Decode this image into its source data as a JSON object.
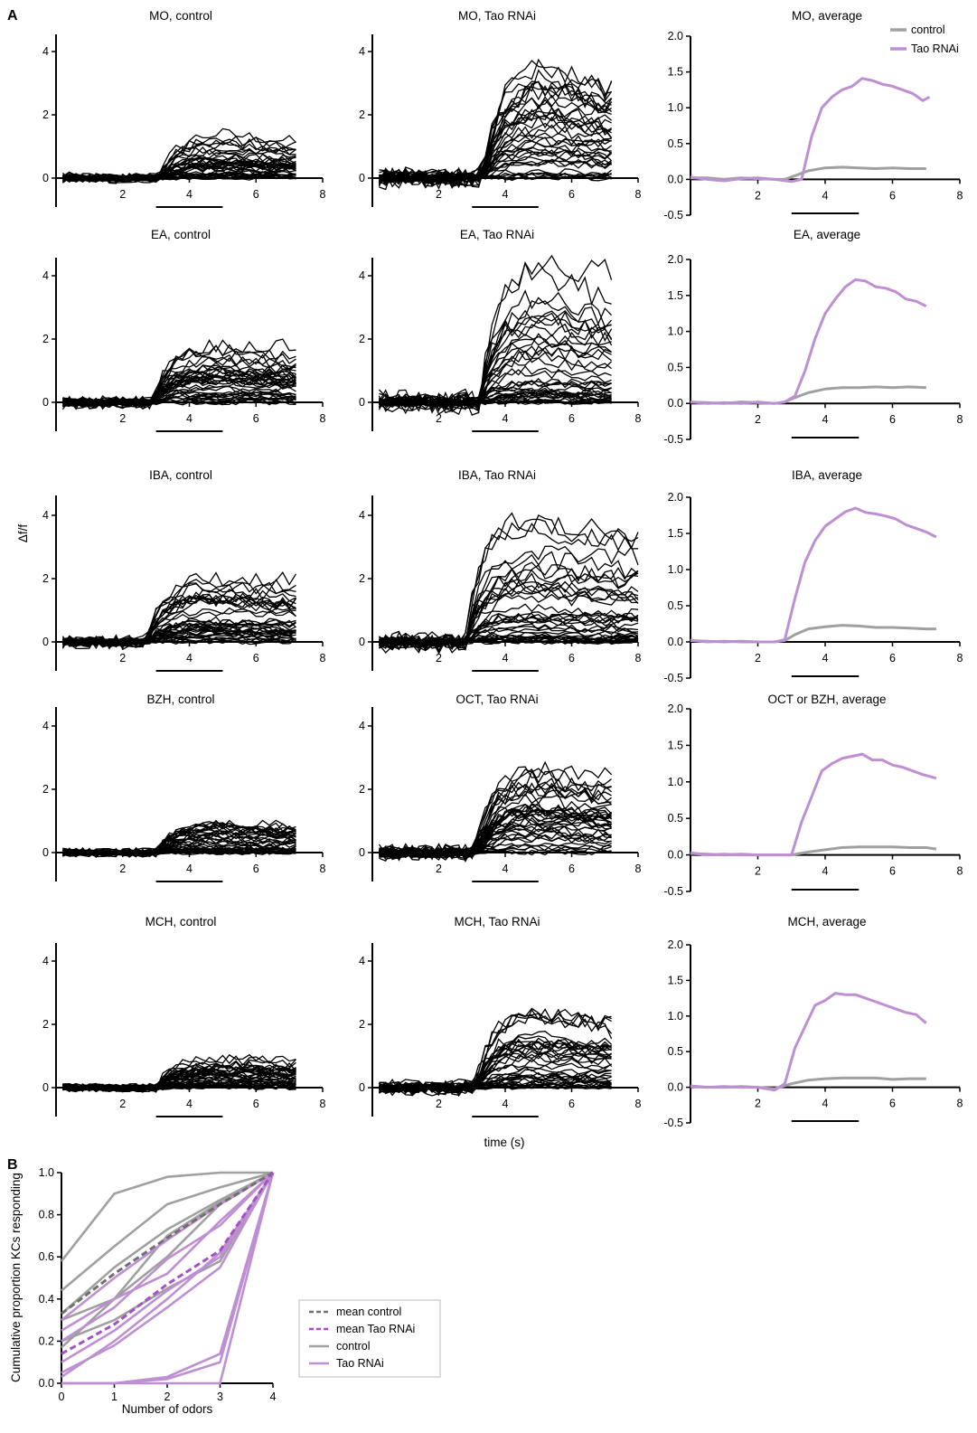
{
  "figure": {
    "panel_a_label": "A",
    "panel_b_label": "B",
    "shared_ylabel": "Δf/f",
    "shared_xlabel": "time (s)"
  },
  "colors": {
    "control": "#a0a0a0",
    "tao": "#be8fd2",
    "trace": "#000000",
    "mean_tao": "#a650c4",
    "mean_control": "#707070"
  },
  "chart_data": [
    {
      "type": "line",
      "title": "MO, control",
      "kind": "traces",
      "xlim": [
        0,
        8
      ],
      "ylim": [
        -0.8,
        4.6
      ],
      "yticks": [
        0,
        2,
        4
      ],
      "xticks": [
        2,
        4,
        6,
        8
      ],
      "n_traces": 40,
      "onset_s": 3.1,
      "peak_s": 5.0,
      "max_response": 1.4,
      "baseline_noise": 0.08,
      "bar_s": [
        3,
        5
      ],
      "t_end": 7.2
    },
    {
      "type": "line",
      "title": "MO, Tao RNAi",
      "kind": "traces",
      "xlim": [
        0,
        8
      ],
      "ylim": [
        -0.8,
        4.6
      ],
      "yticks": [
        0,
        2,
        4
      ],
      "xticks": [
        2,
        4,
        6,
        8
      ],
      "n_traces": 40,
      "onset_s": 3.3,
      "peak_s": 5.2,
      "max_response": 3.5,
      "baseline_noise": 0.08,
      "bar_s": [
        3,
        5
      ],
      "t_end": 7.2
    },
    {
      "type": "line",
      "title": "MO, average",
      "kind": "average",
      "xlim": [
        0,
        8
      ],
      "ylim": [
        -0.5,
        2.0
      ],
      "yticks": [
        -0.5,
        0.0,
        0.5,
        1.0,
        1.5,
        2.0
      ],
      "xticks": [
        2,
        4,
        6,
        8
      ],
      "bar_s": [
        3,
        5
      ],
      "legend": {
        "position": "top-right",
        "entries": [
          {
            "label": "control",
            "color": "#a0a0a0"
          },
          {
            "label": "Tao RNAi",
            "color": "#be8fd2"
          }
        ]
      },
      "series": [
        {
          "name": "control",
          "x": [
            0,
            0.5,
            1,
            1.5,
            2,
            2.5,
            2.8,
            3.1,
            3.5,
            4,
            4.5,
            5,
            5.5,
            6,
            6.5,
            7
          ],
          "y": [
            0.02,
            0.02,
            0.0,
            0.02,
            0.01,
            0.0,
            0.0,
            0.05,
            0.12,
            0.16,
            0.17,
            0.16,
            0.15,
            0.16,
            0.15,
            0.15
          ]
        },
        {
          "name": "Tao RNAi",
          "x": [
            0,
            0.5,
            1,
            1.5,
            2,
            2.5,
            3,
            3.3,
            3.6,
            3.9,
            4.2,
            4.5,
            4.8,
            5.1,
            5.4,
            5.7,
            6,
            6.3,
            6.6,
            6.9,
            7.1
          ],
          "y": [
            0.03,
            0.0,
            -0.02,
            0.01,
            0.02,
            0.0,
            -0.03,
            0.0,
            0.6,
            1.0,
            1.15,
            1.25,
            1.3,
            1.41,
            1.38,
            1.33,
            1.3,
            1.25,
            1.2,
            1.1,
            1.15
          ]
        }
      ]
    },
    {
      "type": "line",
      "title": "EA, control",
      "kind": "traces",
      "xlim": [
        0,
        8
      ],
      "ylim": [
        -0.8,
        4.6
      ],
      "yticks": [
        0,
        2,
        4
      ],
      "xticks": [
        2,
        4,
        6,
        8
      ],
      "n_traces": 40,
      "onset_s": 2.9,
      "peak_s": 4.8,
      "max_response": 1.8,
      "baseline_noise": 0.08,
      "bar_s": [
        3,
        5
      ],
      "t_end": 7.2
    },
    {
      "type": "line",
      "title": "EA, Tao RNAi",
      "kind": "traces",
      "xlim": [
        0,
        8
      ],
      "ylim": [
        -0.8,
        4.6
      ],
      "yticks": [
        0,
        2,
        4
      ],
      "xticks": [
        2,
        4,
        6,
        8
      ],
      "n_traces": 40,
      "onset_s": 3.2,
      "peak_s": 5.0,
      "max_response": 4.3,
      "baseline_noise": 0.08,
      "bar_s": [
        3,
        5
      ],
      "t_end": 7.2
    },
    {
      "type": "line",
      "title": "EA, average",
      "kind": "average",
      "xlim": [
        0,
        8
      ],
      "ylim": [
        -0.5,
        2.0
      ],
      "yticks": [
        -0.5,
        0.0,
        0.5,
        1.0,
        1.5,
        2.0
      ],
      "xticks": [
        2,
        4,
        6,
        8
      ],
      "bar_s": [
        3,
        5
      ],
      "series": [
        {
          "name": "control",
          "x": [
            0,
            0.5,
            1,
            1.5,
            2,
            2.5,
            2.8,
            3.1,
            3.5,
            4,
            4.5,
            5,
            5.5,
            6,
            6.5,
            7
          ],
          "y": [
            0.02,
            0.01,
            0.0,
            0.02,
            0.01,
            0.0,
            0.02,
            0.08,
            0.15,
            0.2,
            0.22,
            0.22,
            0.23,
            0.22,
            0.23,
            0.22
          ]
        },
        {
          "name": "Tao RNAi",
          "x": [
            0,
            0.5,
            1,
            1.5,
            2,
            2.5,
            2.8,
            3.1,
            3.4,
            3.7,
            4,
            4.3,
            4.6,
            4.9,
            5.2,
            5.5,
            5.8,
            6.1,
            6.4,
            6.7,
            7
          ],
          "y": [
            0.02,
            0.0,
            0.01,
            0.0,
            0.02,
            0.0,
            0.02,
            0.1,
            0.45,
            0.9,
            1.25,
            1.45,
            1.62,
            1.72,
            1.7,
            1.62,
            1.6,
            1.55,
            1.45,
            1.42,
            1.35
          ]
        }
      ]
    },
    {
      "type": "line",
      "title": "IBA, control",
      "kind": "traces",
      "xlim": [
        0,
        8
      ],
      "ylim": [
        -0.8,
        4.6
      ],
      "yticks": [
        0,
        2,
        4
      ],
      "xticks": [
        2,
        4,
        6,
        8
      ],
      "n_traces": 40,
      "onset_s": 2.7,
      "peak_s": 4.6,
      "max_response": 2.0,
      "baseline_noise": 0.08,
      "bar_s": [
        3,
        5
      ],
      "t_end": 7.2
    },
    {
      "type": "line",
      "title": "IBA, Tao RNAi",
      "kind": "traces",
      "xlim": [
        0,
        8
      ],
      "ylim": [
        -0.8,
        4.6
      ],
      "yticks": [
        0,
        2,
        4
      ],
      "xticks": [
        2,
        4,
        6,
        8
      ],
      "n_traces": 40,
      "onset_s": 2.8,
      "peak_s": 4.5,
      "max_response": 3.8,
      "baseline_noise": 0.08,
      "bar_s": [
        3,
        5
      ],
      "t_end": 8.0
    },
    {
      "type": "line",
      "title": "IBA, average",
      "kind": "average",
      "xlim": [
        0,
        8
      ],
      "ylim": [
        -0.5,
        2.0
      ],
      "yticks": [
        -0.5,
        0.0,
        0.5,
        1.0,
        1.5,
        2.0
      ],
      "xticks": [
        2,
        4,
        6,
        8
      ],
      "bar_s": [
        3,
        5
      ],
      "series": [
        {
          "name": "control",
          "x": [
            0,
            0.5,
            1,
            1.5,
            2,
            2.5,
            2.8,
            3.1,
            3.5,
            4,
            4.5,
            5,
            5.5,
            6,
            6.5,
            7,
            7.3
          ],
          "y": [
            0.02,
            0.01,
            0.0,
            0.01,
            0.0,
            0.0,
            0.02,
            0.1,
            0.18,
            0.21,
            0.23,
            0.22,
            0.2,
            0.2,
            0.19,
            0.18,
            0.18
          ]
        },
        {
          "name": "Tao RNAi",
          "x": [
            0,
            0.5,
            1,
            1.5,
            2,
            2.5,
            2.8,
            3.1,
            3.4,
            3.7,
            4,
            4.3,
            4.6,
            4.9,
            5.2,
            5.5,
            5.8,
            6.1,
            6.4,
            6.7,
            7,
            7.3
          ],
          "y": [
            0.02,
            0.0,
            0.01,
            0.0,
            0.0,
            0.0,
            0.03,
            0.6,
            1.1,
            1.4,
            1.6,
            1.7,
            1.8,
            1.85,
            1.79,
            1.77,
            1.74,
            1.7,
            1.62,
            1.57,
            1.52,
            1.45
          ]
        }
      ]
    },
    {
      "type": "line",
      "title": "BZH, control",
      "kind": "traces",
      "xlim": [
        0,
        8
      ],
      "ylim": [
        -0.8,
        4.6
      ],
      "yticks": [
        0,
        2,
        4
      ],
      "xticks": [
        2,
        4,
        6,
        8
      ],
      "n_traces": 40,
      "onset_s": 3.0,
      "peak_s": 4.8,
      "max_response": 0.9,
      "baseline_noise": 0.08,
      "bar_s": [
        3,
        5
      ],
      "t_end": 7.2
    },
    {
      "type": "line",
      "title": "OCT, Tao RNAi",
      "kind": "traces",
      "xlim": [
        0,
        8
      ],
      "ylim": [
        -0.8,
        4.6
      ],
      "yticks": [
        0,
        2,
        4
      ],
      "xticks": [
        2,
        4,
        6,
        8
      ],
      "n_traces": 40,
      "onset_s": 3.1,
      "peak_s": 4.8,
      "max_response": 2.6,
      "baseline_noise": 0.08,
      "bar_s": [
        3,
        5
      ],
      "t_end": 7.2
    },
    {
      "type": "line",
      "title": "OCT or BZH, average",
      "kind": "average",
      "xlim": [
        0,
        8
      ],
      "ylim": [
        -0.5,
        2.0
      ],
      "yticks": [
        -0.5,
        0.0,
        0.5,
        1.0,
        1.5,
        2.0
      ],
      "xticks": [
        2,
        4,
        6,
        8
      ],
      "bar_s": [
        3,
        5
      ],
      "series": [
        {
          "name": "control",
          "x": [
            0,
            0.5,
            1,
            1.5,
            2,
            2.5,
            3,
            3.5,
            4,
            4.5,
            5,
            5.5,
            6,
            6.5,
            7,
            7.3
          ],
          "y": [
            0.02,
            0.01,
            0.0,
            0.01,
            0.0,
            0.0,
            0.0,
            0.04,
            0.07,
            0.1,
            0.11,
            0.11,
            0.11,
            0.1,
            0.1,
            0.08
          ]
        },
        {
          "name": "Tao RNAi",
          "x": [
            0,
            0.5,
            1,
            1.5,
            2,
            2.5,
            3,
            3.3,
            3.6,
            3.9,
            4.2,
            4.5,
            4.8,
            5.1,
            5.4,
            5.7,
            6,
            6.3,
            6.6,
            6.9,
            7.3
          ],
          "y": [
            0.03,
            0.0,
            0.01,
            0.0,
            0.0,
            0.0,
            0.0,
            0.45,
            0.8,
            1.15,
            1.25,
            1.32,
            1.35,
            1.38,
            1.3,
            1.3,
            1.23,
            1.2,
            1.15,
            1.1,
            1.05
          ]
        }
      ]
    },
    {
      "type": "line",
      "title": "MCH, control",
      "kind": "traces",
      "xlim": [
        0,
        8
      ],
      "ylim": [
        -0.8,
        4.6
      ],
      "yticks": [
        0,
        2,
        4
      ],
      "xticks": [
        2,
        4,
        6,
        8
      ],
      "n_traces": 40,
      "onset_s": 3.0,
      "peak_s": 4.8,
      "max_response": 0.9,
      "baseline_noise": 0.08,
      "bar_s": [
        3,
        5
      ],
      "t_end": 7.2
    },
    {
      "type": "line",
      "title": "MCH, Tao RNAi",
      "kind": "traces",
      "xlim": [
        0,
        8
      ],
      "ylim": [
        -0.8,
        4.6
      ],
      "yticks": [
        0,
        2,
        4
      ],
      "xticks": [
        2,
        4,
        6,
        8
      ],
      "n_traces": 40,
      "onset_s": 3.1,
      "peak_s": 4.7,
      "max_response": 2.4,
      "baseline_noise": 0.08,
      "bar_s": [
        3,
        5
      ],
      "t_end": 7.2
    },
    {
      "type": "line",
      "title": "MCH, average",
      "kind": "average",
      "xlim": [
        0,
        8
      ],
      "ylim": [
        -0.5,
        2.0
      ],
      "yticks": [
        -0.5,
        0.0,
        0.5,
        1.0,
        1.5,
        2.0
      ],
      "xticks": [
        2,
        4,
        6,
        8
      ],
      "bar_s": [
        3,
        5
      ],
      "series": [
        {
          "name": "control",
          "x": [
            0,
            0.5,
            1,
            1.5,
            2,
            2.5,
            3,
            3.5,
            4,
            4.5,
            5,
            5.5,
            6,
            6.5,
            7
          ],
          "y": [
            0.01,
            0.0,
            0.0,
            0.01,
            0.0,
            -0.02,
            0.05,
            0.1,
            0.12,
            0.13,
            0.13,
            0.13,
            0.11,
            0.12,
            0.12
          ]
        },
        {
          "name": "Tao RNAi",
          "x": [
            0,
            0.5,
            1,
            1.5,
            2,
            2.5,
            2.8,
            3.1,
            3.4,
            3.7,
            4,
            4.3,
            4.6,
            4.9,
            5.2,
            5.5,
            5.8,
            6.1,
            6.4,
            6.7,
            7
          ],
          "y": [
            0.02,
            0.0,
            0.01,
            0.0,
            0.0,
            -0.04,
            0.05,
            0.55,
            0.85,
            1.15,
            1.22,
            1.32,
            1.3,
            1.3,
            1.25,
            1.2,
            1.15,
            1.1,
            1.05,
            1.02,
            0.9
          ]
        }
      ]
    },
    {
      "type": "line",
      "title": "",
      "kind": "cumulative",
      "xlabel": "Number of odors",
      "ylabel": "Cumulative proportion KCs responding",
      "xlim": [
        0,
        4
      ],
      "ylim": [
        0,
        1.0
      ],
      "xticks": [
        0,
        1,
        2,
        3,
        4
      ],
      "yticks": [
        0.0,
        0.2,
        0.4,
        0.6,
        0.8,
        1.0
      ],
      "legend": {
        "position": "right",
        "entries": [
          {
            "label": "mean control",
            "style": "dashed",
            "color": "#707070"
          },
          {
            "label": "mean Tao RNAi",
            "style": "dashed",
            "color": "#a650c4"
          },
          {
            "label": "control",
            "style": "solid",
            "color": "#a0a0a0"
          },
          {
            "label": "Tao RNAi",
            "style": "solid",
            "color": "#be8fd2"
          }
        ]
      },
      "x": [
        0,
        1,
        2,
        3,
        4
      ],
      "series": [
        {
          "name": "mean control",
          "group": "mean_control",
          "values": [
            0.33,
            0.52,
            0.69,
            0.85,
            1.0
          ]
        },
        {
          "name": "mean Tao RNAi",
          "group": "mean_tao",
          "values": [
            0.14,
            0.28,
            0.47,
            0.63,
            1.0
          ]
        },
        {
          "name": "control",
          "group": "control",
          "values": [
            0.58,
            0.9,
            0.98,
            1.0,
            1.0
          ]
        },
        {
          "name": "control",
          "group": "control",
          "values": [
            0.44,
            0.65,
            0.85,
            0.93,
            1.0
          ]
        },
        {
          "name": "control",
          "group": "control",
          "values": [
            0.33,
            0.55,
            0.73,
            0.87,
            1.0
          ]
        },
        {
          "name": "control",
          "group": "control",
          "values": [
            0.3,
            0.4,
            0.6,
            0.85,
            1.0
          ]
        },
        {
          "name": "control",
          "group": "control",
          "values": [
            0.2,
            0.3,
            0.45,
            0.58,
            1.0
          ]
        },
        {
          "name": "control",
          "group": "control",
          "values": [
            0.17,
            0.4,
            0.7,
            0.86,
            1.0
          ]
        },
        {
          "name": "Tao RNAi",
          "group": "tao",
          "values": [
            0.3,
            0.5,
            0.68,
            0.85,
            1.0
          ]
        },
        {
          "name": "Tao RNAi",
          "group": "tao",
          "values": [
            0.25,
            0.4,
            0.52,
            0.77,
            1.0
          ]
        },
        {
          "name": "Tao RNAi",
          "group": "tao",
          "values": [
            0.2,
            0.36,
            0.59,
            0.75,
            1.0
          ]
        },
        {
          "name": "Tao RNAi",
          "group": "tao",
          "values": [
            0.1,
            0.25,
            0.44,
            0.6,
            1.0
          ]
        },
        {
          "name": "Tao RNAi",
          "group": "tao",
          "values": [
            0.05,
            0.18,
            0.36,
            0.55,
            1.0
          ]
        },
        {
          "name": "Tao RNAi",
          "group": "tao",
          "values": [
            0.03,
            0.2,
            0.4,
            0.62,
            1.0
          ]
        },
        {
          "name": "Tao RNAi",
          "group": "tao",
          "values": [
            0.0,
            0.0,
            0.03,
            0.14,
            1.0
          ]
        },
        {
          "name": "Tao RNAi",
          "group": "tao",
          "values": [
            0.0,
            0.0,
            0.02,
            0.1,
            1.0
          ]
        },
        {
          "name": "Tao RNAi",
          "group": "tao",
          "values": [
            0.0,
            0.0,
            0.0,
            0.0,
            1.0
          ]
        }
      ]
    }
  ]
}
